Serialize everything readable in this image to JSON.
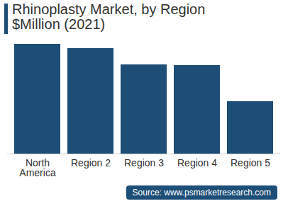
{
  "chart_data": {
    "type": "bar",
    "title": "Rhinoplasty Market, by Region $Million (2021)",
    "categories": [
      "North America",
      "Region 2",
      "Region 3",
      "Region 4",
      "Region 5"
    ],
    "values": [
      155,
      149,
      126,
      125,
      74
    ],
    "color": "#1d4e77",
    "ylim": [
      0,
      155
    ],
    "tick_labels": "x",
    "grid": false,
    "source": "Source: www.psmarketresearch.com"
  }
}
